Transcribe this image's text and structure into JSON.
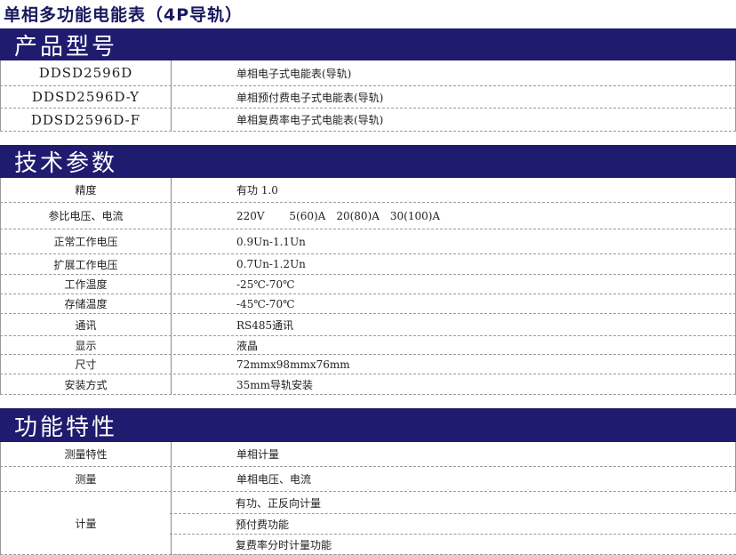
{
  "title": "单相多功能电能表（4P导轨）",
  "sections": [
    {
      "heading": "产品型号",
      "rows": [
        {
          "label": "DDSD2596D",
          "value": "单相电子式电能表(导轨)"
        },
        {
          "label": "DDSD2596D-Y",
          "value": "单相预付费电子式电能表(导轨)"
        },
        {
          "label": "DDSD2596D-F",
          "value": "单相复费率电子式电能表(导轨)"
        }
      ]
    },
    {
      "heading": "技术参数",
      "rows": [
        {
          "label": "精度",
          "value": "有功 1.0"
        },
        {
          "label": "参比电压、电流",
          "value": "220V　　 5(60)A　20(80)A　30(100)A"
        },
        {
          "label": "正常工作电压",
          "value": "0.9Un-1.1Un"
        },
        {
          "label": "扩展工作电压",
          "value": "0.7Un-1.2Un"
        },
        {
          "label": "工作温度",
          "value": "-25℃-70℃"
        },
        {
          "label": "存储温度",
          "value": "-45℃-70℃"
        },
        {
          "label": "通讯",
          "value": "RS485通讯"
        },
        {
          "label": "显示",
          "value": "液晶"
        },
        {
          "label": "尺寸",
          "value": "72mmx98mmx76mm"
        },
        {
          "label": "安装方式",
          "value": "35mm导轨安装"
        }
      ]
    },
    {
      "heading": "功能特性",
      "rows": [
        {
          "label": "测量特性",
          "value": "单相计量"
        },
        {
          "label": "测量",
          "value": "单相电压、电流"
        }
      ],
      "metering": {
        "label": "计量",
        "values": [
          "有功、正反向计量",
          "预付费功能",
          "复费率分时计量功能"
        ]
      }
    }
  ]
}
